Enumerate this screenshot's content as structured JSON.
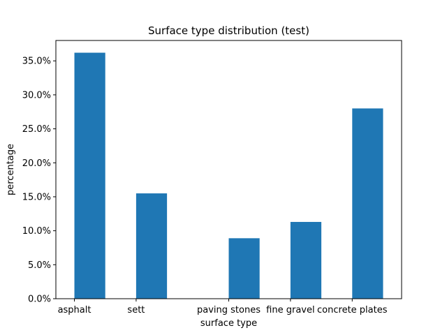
{
  "chart_data": {
    "type": "bar",
    "title": "Surface type distribution (test)",
    "xlabel": "surface type",
    "ylabel": "percentage",
    "bar_color": "#1f77b4",
    "x_positions": [
      0,
      1,
      2.5,
      3.5,
      4.5
    ],
    "xlim": [
      -0.55,
      5.05
    ],
    "categories": [
      "asphalt",
      "sett",
      "paving stones",
      "fine gravel",
      "concrete plates"
    ],
    "values": [
      36.2,
      15.5,
      8.9,
      11.3,
      28.0
    ],
    "ylim": [
      0,
      38.0
    ],
    "yticks": [
      0,
      5,
      10,
      15,
      20,
      25,
      30,
      35
    ],
    "ytick_labels": [
      "0.0%",
      "5.0%",
      "10.0%",
      "15.0%",
      "20.0%",
      "25.0%",
      "30.0%",
      "35.0%"
    ],
    "grid": false,
    "legend": "none"
  }
}
